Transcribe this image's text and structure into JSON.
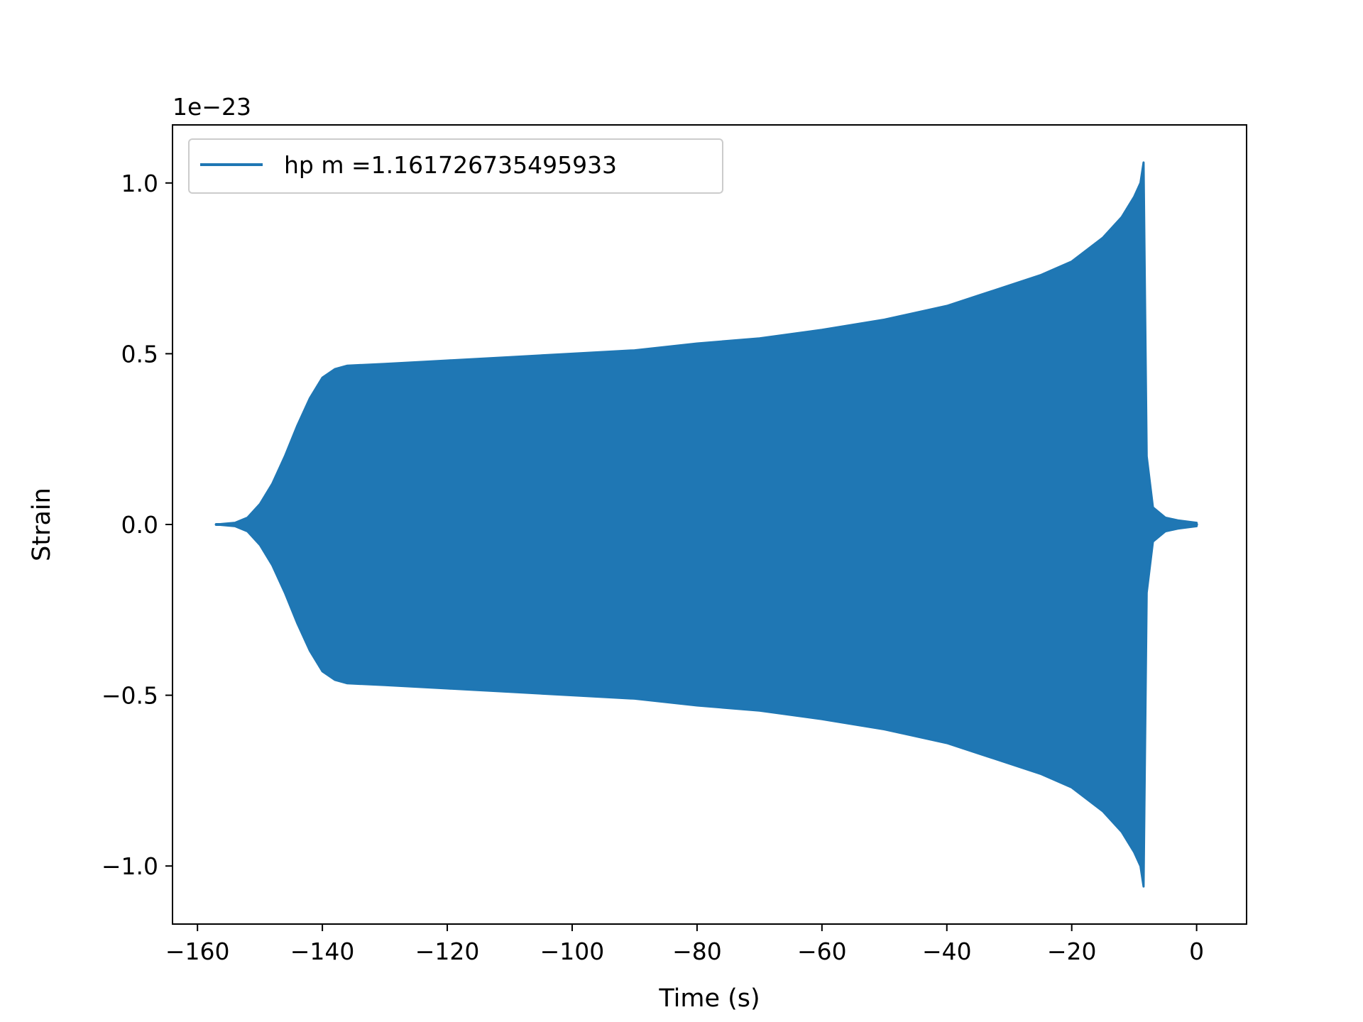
{
  "chart_data": {
    "type": "line",
    "title": "",
    "xlabel": "Time (s)",
    "ylabel": "Strain",
    "y_offset_label": "1e−23",
    "xlim": [
      -164,
      8
    ],
    "ylim": [
      -1.17,
      1.17
    ],
    "xticks": [
      -160,
      -140,
      -120,
      -100,
      -80,
      -60,
      -40,
      -20,
      0
    ],
    "xtick_labels": [
      "−160",
      "−140",
      "−120",
      "−100",
      "−80",
      "−60",
      "−40",
      "−20",
      "0"
    ],
    "yticks": [
      -1.0,
      -0.5,
      0.0,
      0.5,
      1.0
    ],
    "ytick_labels": [
      "−1.0",
      "−0.5",
      "0.0",
      "0.5",
      "1.0"
    ],
    "grid": false,
    "legend_position": "upper-left",
    "series": [
      {
        "name": "hp m =1.161726735495933",
        "color": "#1f77b4",
        "style": "oscillating-envelope",
        "upper_envelope": [
          [
            -157,
            0.0
          ],
          [
            -154,
            0.005
          ],
          [
            -152,
            0.02
          ],
          [
            -150,
            0.06
          ],
          [
            -148,
            0.12
          ],
          [
            -146,
            0.2
          ],
          [
            -144,
            0.29
          ],
          [
            -142,
            0.37
          ],
          [
            -140,
            0.43
          ],
          [
            -138,
            0.455
          ],
          [
            -136,
            0.465
          ],
          [
            -130,
            0.47
          ],
          [
            -120,
            0.48
          ],
          [
            -110,
            0.49
          ],
          [
            -100,
            0.5
          ],
          [
            -90,
            0.51
          ],
          [
            -80,
            0.53
          ],
          [
            -70,
            0.545
          ],
          [
            -60,
            0.57
          ],
          [
            -50,
            0.6
          ],
          [
            -40,
            0.64
          ],
          [
            -35,
            0.67
          ],
          [
            -30,
            0.7
          ],
          [
            -25,
            0.73
          ],
          [
            -20,
            0.77
          ],
          [
            -15,
            0.84
          ],
          [
            -12,
            0.9
          ],
          [
            -10,
            0.96
          ],
          [
            -9,
            1.0
          ],
          [
            -8.5,
            1.06
          ],
          [
            -8.0,
            0.2
          ],
          [
            -7.0,
            0.05
          ],
          [
            -5,
            0.02
          ],
          [
            -3,
            0.012
          ],
          [
            0,
            0.005
          ]
        ],
        "lower_envelope": [
          [
            -157,
            0.0
          ],
          [
            -154,
            -0.005
          ],
          [
            -152,
            -0.02
          ],
          [
            -150,
            -0.06
          ],
          [
            -148,
            -0.12
          ],
          [
            -146,
            -0.2
          ],
          [
            -144,
            -0.29
          ],
          [
            -142,
            -0.37
          ],
          [
            -140,
            -0.43
          ],
          [
            -138,
            -0.455
          ],
          [
            -136,
            -0.465
          ],
          [
            -130,
            -0.47
          ],
          [
            -120,
            -0.48
          ],
          [
            -110,
            -0.49
          ],
          [
            -100,
            -0.5
          ],
          [
            -90,
            -0.51
          ],
          [
            -80,
            -0.53
          ],
          [
            -70,
            -0.545
          ],
          [
            -60,
            -0.57
          ],
          [
            -50,
            -0.6
          ],
          [
            -40,
            -0.64
          ],
          [
            -35,
            -0.67
          ],
          [
            -30,
            -0.7
          ],
          [
            -25,
            -0.73
          ],
          [
            -20,
            -0.77
          ],
          [
            -15,
            -0.84
          ],
          [
            -12,
            -0.9
          ],
          [
            -10,
            -0.96
          ],
          [
            -9,
            -1.0
          ],
          [
            -8.5,
            -1.06
          ],
          [
            -8.0,
            -0.2
          ],
          [
            -7.0,
            -0.05
          ],
          [
            -5,
            -0.02
          ],
          [
            -3,
            -0.012
          ],
          [
            0,
            -0.005
          ]
        ]
      }
    ]
  }
}
